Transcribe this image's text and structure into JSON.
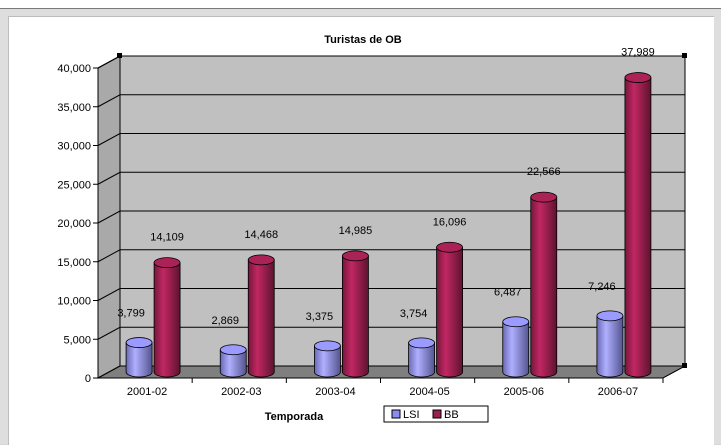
{
  "chart_data": {
    "type": "bar",
    "title": "Turistas de OB",
    "xlabel": "Temporada",
    "ylabel": "",
    "ylim": [
      0,
      40000
    ],
    "yticks": [
      "0",
      "5,000",
      "10,000",
      "15,000",
      "20,000",
      "25,000",
      "30,000",
      "35,000",
      "40,000"
    ],
    "categories": [
      "2001-02",
      "2002-03",
      "2003-04",
      "2004-05",
      "2005-06",
      "2006-07"
    ],
    "series": [
      {
        "name": "LSI",
        "color": "#8c8cf0",
        "values": [
          3799,
          2869,
          3375,
          3754,
          6487,
          7246
        ],
        "labels": [
          "3,799",
          "2,869",
          "3,375",
          "3,754",
          "6,487",
          "7,246"
        ]
      },
      {
        "name": "BB",
        "color": "#9b1f4f",
        "values": [
          14109,
          14468,
          14985,
          16096,
          22566,
          37989
        ],
        "labels": [
          "14,109",
          "14,468",
          "14,985",
          "16,096",
          "22,566",
          "37,989"
        ]
      }
    ],
    "grid": true,
    "legend": "bottom"
  }
}
